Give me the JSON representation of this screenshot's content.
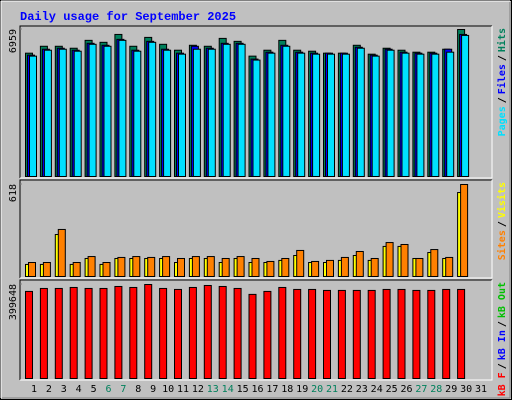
{
  "chart_data": [
    {
      "type": "bar",
      "title": "Daily usage for September 2025",
      "legend_separator": "/",
      "ylim": [
        0,
        6959
      ],
      "yticks": [
        6959
      ],
      "series": [
        {
          "name": "Hits",
          "color": "#00805C",
          "values": [
            5838,
            6165,
            6165,
            6072,
            6445,
            6352,
            6725,
            6165,
            6585,
            6258,
            5978,
            6212,
            6165,
            6538,
            6398,
            5698,
            5978,
            6445,
            5978,
            5931,
            5838,
            5838,
            6212,
            5791,
            6072,
            5978,
            5885,
            5885,
            6025,
            6959,
            null
          ]
        },
        {
          "name": "Files",
          "color": "#0000FF",
          "values": [
            5745,
            6025,
            6072,
            5978,
            6305,
            6212,
            6492,
            5978,
            6398,
            6025,
            5838,
            6165,
            6072,
            6305,
            6305,
            5558,
            5885,
            6212,
            5885,
            5838,
            5838,
            5838,
            6118,
            5745,
            6025,
            5885,
            5838,
            5838,
            6025,
            6725,
            null
          ]
        },
        {
          "name": "Pages",
          "color": "#00E0FF",
          "values": [
            5698,
            5978,
            6025,
            5931,
            6258,
            6165,
            6445,
            5931,
            6352,
            5978,
            5791,
            6025,
            6025,
            6258,
            6258,
            5511,
            5838,
            6165,
            5838,
            5791,
            5791,
            5791,
            6072,
            5698,
            5978,
            5838,
            5791,
            5791,
            5885,
            6678,
            null
          ]
        }
      ]
    },
    {
      "type": "bar",
      "legend_separator": "/",
      "ylim": [
        0,
        618
      ],
      "yticks": [
        618
      ],
      "series": [
        {
          "name": "Visits",
          "color": "#FFFF00",
          "values": [
            81,
            81,
            282,
            81,
            121,
            81,
            121,
            121,
            121,
            121,
            94,
            121,
            121,
            94,
            121,
            94,
            94,
            108,
            141,
            94,
            94,
            108,
            141,
            108,
            202,
            202,
            121,
            161,
            121,
            564,
            null
          ]
        },
        {
          "name": "Sites",
          "color": "#FF8000",
          "values": [
            94,
            94,
            316,
            94,
            134,
            94,
            128,
            134,
            128,
            134,
            121,
            134,
            134,
            121,
            134,
            121,
            101,
            121,
            175,
            101,
            108,
            128,
            168,
            121,
            228,
            215,
            121,
            181,
            128,
            618,
            null
          ]
        }
      ]
    },
    {
      "type": "bar",
      "legend_separator": "/",
      "ylim": [
        0,
        399648
      ],
      "yticks": [
        399648
      ],
      "categories": [
        "1",
        "2",
        "3",
        "4",
        "5",
        "6",
        "7",
        "8",
        "9",
        "10",
        "11",
        "12",
        "13",
        "14",
        "15",
        "16",
        "17",
        "18",
        "19",
        "20",
        "21",
        "22",
        "23",
        "24",
        "25",
        "26",
        "27",
        "28",
        "29",
        "30",
        "31"
      ],
      "weekend_color": "#00805C",
      "weekends": [
        5,
        6,
        12,
        13,
        19,
        20,
        26,
        27
      ],
      "series": [
        {
          "name": "kB Out",
          "color": "#00C000",
          "values": [
            null,
            null,
            null,
            null,
            null,
            null,
            null,
            null,
            null,
            null,
            null,
            null,
            null,
            null,
            null,
            null,
            null,
            null,
            null,
            null,
            null,
            null,
            null,
            null,
            null,
            null,
            null,
            null,
            null,
            null,
            null
          ]
        },
        {
          "name": "kB In",
          "color": "#0000FF",
          "values": [
            null,
            null,
            null,
            null,
            null,
            null,
            null,
            null,
            null,
            null,
            null,
            null,
            null,
            null,
            null,
            null,
            null,
            null,
            null,
            null,
            null,
            null,
            null,
            null,
            null,
            null,
            null,
            null,
            null,
            null,
            null
          ]
        },
        {
          "name": "kB F",
          "color": "#FF0000",
          "values": [
            370216,
            382837,
            382837,
            387044,
            382837,
            382837,
            391251,
            387044,
            399648,
            382837,
            378630,
            387044,
            395458,
            391251,
            382837,
            357595,
            370216,
            387044,
            378630,
            378630,
            374423,
            374423,
            374423,
            374423,
            378630,
            378630,
            374423,
            374423,
            378630,
            378630,
            null
          ]
        }
      ]
    }
  ]
}
